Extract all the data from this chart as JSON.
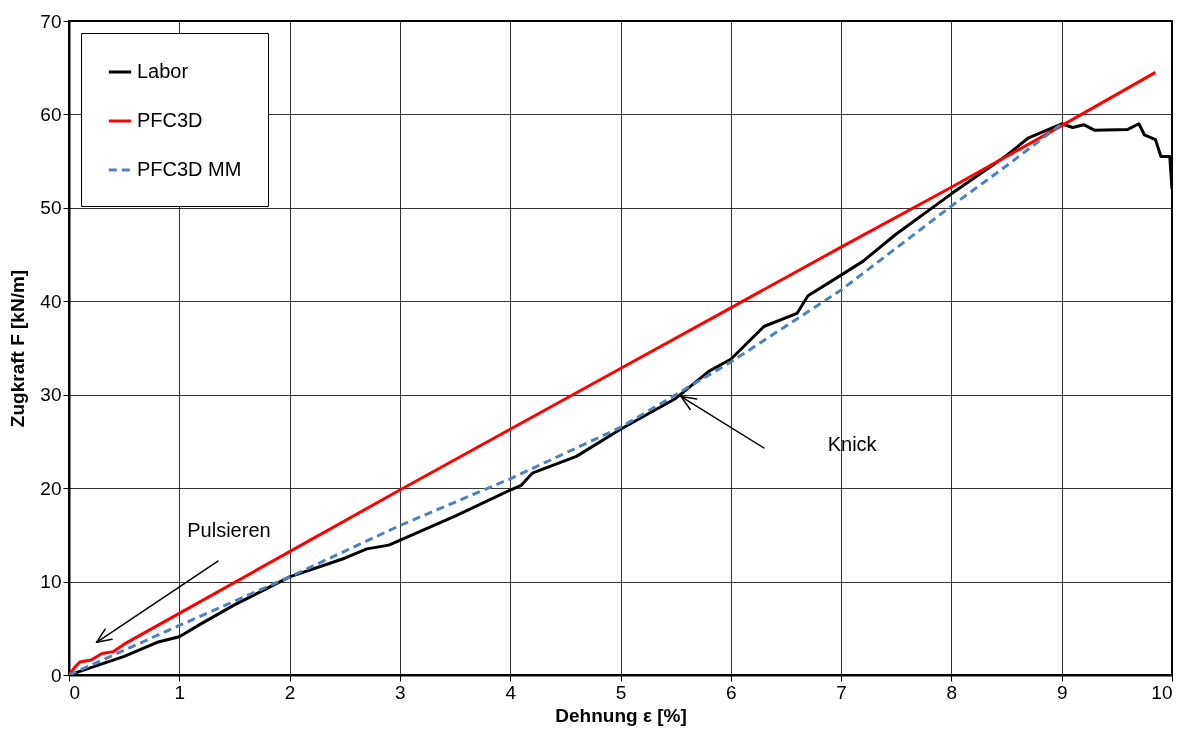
{
  "chart_data": {
    "type": "line",
    "xlabel": "Dehnung ε [%]",
    "ylabel": "Zugkraft F [kN/m]",
    "xlim": [
      0,
      10
    ],
    "xticks": [
      0,
      1,
      2,
      3,
      4,
      5,
      6,
      7,
      8,
      9,
      10
    ],
    "ylim": [
      0,
      70
    ],
    "yticks": [
      0,
      10,
      20,
      30,
      40,
      50,
      60,
      70
    ],
    "grid": true,
    "legend": "top left",
    "series": [
      {
        "name": "Labor",
        "color": "#000000",
        "line_style": "solid",
        "x": [
          0,
          0.5,
          0.8,
          1,
          1.2,
          1.5,
          2,
          2.5,
          2.7,
          2.9,
          3.5,
          4,
          4.1,
          4.2,
          4.6,
          5,
          5.5,
          5.8,
          6,
          6.3,
          6.6,
          6.7,
          7,
          7.2,
          7.5,
          8,
          8.5,
          8.7,
          9,
          9.1,
          9.2,
          9.3,
          9.6,
          9.7,
          9.75,
          9.85,
          9.9,
          9.98,
          10
        ],
        "values": [
          0,
          2,
          3.5,
          4.1,
          5.5,
          7.5,
          10.5,
          12.5,
          13.5,
          13.9,
          17,
          19.8,
          20.3,
          21.6,
          23.4,
          26.3,
          29.6,
          32.5,
          33.8,
          37.3,
          38.7,
          40.6,
          42.8,
          44.3,
          47.2,
          51.5,
          55.6,
          57.5,
          59,
          58.6,
          58.9,
          58.3,
          58.4,
          59,
          57.8,
          57.3,
          55.5,
          55.5,
          52
        ]
      },
      {
        "name": "PFC3D",
        "color": "#ff0000",
        "line_style": "solid",
        "x": [
          0,
          0.05,
          0.1,
          0.2,
          0.3,
          0.4,
          0.5,
          1,
          2,
          3,
          4,
          5,
          6,
          7,
          8,
          9,
          9.85
        ],
        "values": [
          0,
          0.8,
          1.4,
          1.6,
          2.3,
          2.5,
          3.3,
          6.6,
          13.2,
          19.8,
          26.3,
          32.8,
          39.3,
          45.8,
          52.2,
          58.8,
          64.5
        ]
      },
      {
        "name": "PFC3D MM",
        "color": "#4f81bd",
        "line_style": "dashed",
        "x": [
          0,
          1,
          2,
          3,
          4,
          5,
          5.5,
          6,
          7,
          8,
          8.5,
          9
        ],
        "values": [
          0,
          5.3,
          10.5,
          16,
          21,
          26.5,
          30,
          33.5,
          41.2,
          50.2,
          54.5,
          59
        ]
      }
    ],
    "annotations": [
      "Pulsieren",
      "Knick"
    ]
  }
}
